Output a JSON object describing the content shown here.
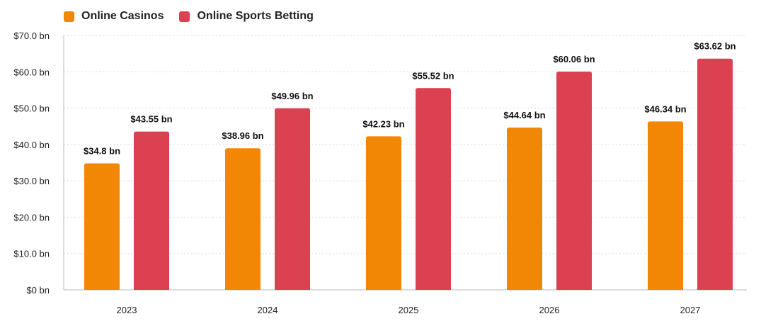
{
  "chart_data": {
    "type": "bar",
    "title": "",
    "categories": [
      "2023",
      "2024",
      "2025",
      "2026",
      "2027"
    ],
    "series": [
      {
        "name": "Online Casinos",
        "color": "#F28705",
        "values": [
          34.8,
          38.96,
          42.23,
          44.64,
          46.34
        ],
        "labels": [
          "$34.8 bn",
          "$38.96 bn",
          "$42.23 bn",
          "$44.64 bn",
          "$46.34 bn"
        ]
      },
      {
        "name": "Online Sports Betting",
        "color": "#DC4152",
        "values": [
          43.55,
          49.96,
          55.52,
          60.06,
          63.62
        ],
        "labels": [
          "$43.55 bn",
          "$49.96 bn",
          "$55.52 bn",
          "$60.06 bn",
          "$63.62 bn"
        ]
      }
    ],
    "ylim": [
      0,
      70
    ],
    "yticks": [
      0,
      10,
      20,
      30,
      40,
      50,
      60,
      70
    ],
    "ytick_labels": [
      "$0 bn",
      "$10.0 bn",
      "$20.0 bn",
      "$30.0 bn",
      "$40.0 bn",
      "$50.0 bn",
      "$60.0 bn",
      "$70.0 bn"
    ],
    "xlabel": "",
    "ylabel": "",
    "grid": true,
    "legend": "top-left"
  }
}
